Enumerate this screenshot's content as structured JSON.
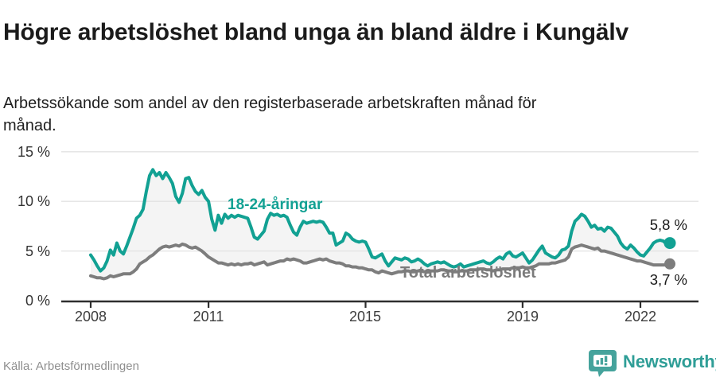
{
  "header": {
    "title": "Högre arbetslöshet bland unga än bland äldre i Kungälv",
    "subtitle": "Arbetssökande som andel av den registerbaserade arbetskraften månad för månad."
  },
  "footer": {
    "source": "Källa: Arbetsförmedlingen",
    "brand": "Newsworthy"
  },
  "colors": {
    "teal": "#12a193",
    "gray": "#7d7d7d",
    "band": "#f4f4f4",
    "grid": "#e2e2e2",
    "axis": "#2e2e2e",
    "logo_badge": "#45a39c",
    "logo_text": "#2f9e97"
  },
  "chart_data": {
    "type": "line",
    "title": "Högre arbetslöshet bland unga än bland äldre i Kungälv",
    "subtitle": "Arbetssökande som andel av den registerbaserade arbetskraften månad för månad.",
    "unit": "%",
    "x_monthly_start": "2008-01",
    "x_monthly_end": "2022-10",
    "ylim": [
      0,
      16
    ],
    "grid": true,
    "y_grid_values": [
      0,
      5,
      10,
      15
    ],
    "y_tick_labels": [
      "15 %",
      "10 %",
      "5 %",
      "0 %"
    ],
    "x_ticks": [
      {
        "label": "2008",
        "month_index": 0
      },
      {
        "label": "2011",
        "month_index": 36
      },
      {
        "label": "2015",
        "month_index": 84
      },
      {
        "label": "2019",
        "month_index": 132
      },
      {
        "label": "2022",
        "month_index": 168
      }
    ],
    "series": [
      {
        "name": "18-24-åringar",
        "end_label": "5,8 %",
        "end_value": 5.8,
        "values": [
          4.6,
          4.1,
          3.5,
          3.0,
          3.3,
          4.0,
          5.1,
          4.6,
          5.8,
          5.0,
          4.7,
          5.5,
          6.4,
          7.3,
          8.3,
          8.6,
          9.2,
          11.0,
          12.6,
          13.2,
          12.6,
          12.9,
          12.3,
          12.9,
          12.4,
          11.8,
          10.5,
          9.9,
          10.8,
          12.3,
          12.4,
          11.6,
          11.0,
          10.7,
          11.1,
          10.4,
          10.0,
          8.2,
          7.1,
          8.6,
          7.8,
          8.7,
          8.3,
          8.6,
          8.4,
          8.6,
          8.5,
          8.4,
          8.3,
          7.4,
          6.4,
          6.2,
          6.6,
          7.0,
          8.2,
          8.8,
          8.6,
          8.7,
          8.5,
          8.6,
          8.4,
          7.6,
          6.9,
          6.6,
          7.4,
          8.0,
          7.8,
          7.9,
          8.0,
          7.9,
          8.0,
          7.9,
          7.4,
          6.8,
          6.8,
          5.6,
          5.8,
          6.0,
          6.8,
          6.6,
          6.2,
          6.0,
          5.9,
          6.0,
          5.9,
          5.2,
          4.4,
          4.3,
          4.5,
          4.7,
          4.0,
          3.5,
          3.9,
          4.3,
          4.2,
          4.1,
          4.3,
          4.2,
          3.9,
          4.0,
          4.2,
          4.0,
          3.7,
          3.5,
          3.7,
          3.8,
          3.9,
          3.8,
          3.9,
          3.7,
          3.5,
          3.4,
          3.5,
          3.7,
          3.4,
          3.5,
          3.6,
          3.7,
          3.8,
          3.9,
          4.0,
          3.8,
          3.7,
          3.9,
          4.2,
          4.4,
          4.2,
          4.7,
          4.9,
          4.5,
          4.4,
          4.6,
          4.8,
          4.3,
          3.8,
          4.1,
          4.6,
          5.1,
          5.5,
          4.8,
          4.6,
          4.4,
          4.3,
          4.6,
          5.1,
          5.2,
          5.5,
          7.0,
          8.0,
          8.3,
          8.7,
          8.5,
          8.0,
          7.4,
          7.6,
          7.2,
          7.3,
          7.0,
          7.4,
          7.3,
          6.9,
          6.5,
          5.8,
          5.4,
          5.2,
          5.6,
          5.3,
          4.9,
          4.6,
          4.5,
          4.9,
          5.3,
          5.8,
          6.0,
          6.1,
          6.0,
          5.7,
          5.8
        ]
      },
      {
        "name": "Total arbetslöshet",
        "end_label": "3,7 %",
        "end_value": 3.7,
        "values": [
          2.5,
          2.4,
          2.3,
          2.3,
          2.2,
          2.3,
          2.5,
          2.4,
          2.5,
          2.6,
          2.7,
          2.7,
          2.7,
          2.9,
          3.2,
          3.7,
          3.9,
          4.1,
          4.4,
          4.6,
          4.9,
          5.2,
          5.4,
          5.5,
          5.4,
          5.5,
          5.6,
          5.5,
          5.7,
          5.6,
          5.4,
          5.3,
          5.4,
          5.2,
          5.0,
          4.7,
          4.4,
          4.2,
          4.0,
          3.8,
          3.8,
          3.7,
          3.6,
          3.7,
          3.6,
          3.7,
          3.6,
          3.7,
          3.7,
          3.8,
          3.6,
          3.7,
          3.8,
          3.9,
          3.6,
          3.7,
          3.8,
          3.9,
          4.0,
          4.0,
          4.2,
          4.1,
          4.2,
          4.1,
          4.0,
          3.8,
          3.8,
          3.9,
          4.0,
          4.1,
          4.2,
          4.1,
          4.2,
          4.0,
          3.9,
          3.8,
          3.8,
          3.7,
          3.5,
          3.5,
          3.4,
          3.4,
          3.3,
          3.3,
          3.2,
          3.1,
          3.1,
          2.9,
          2.8,
          3.0,
          2.9,
          2.8,
          2.7,
          2.8,
          2.9,
          2.9,
          3.0,
          3.0,
          2.9,
          2.9,
          3.0,
          3.0,
          2.9,
          2.9,
          3.0,
          3.0,
          3.0,
          3.1,
          3.1,
          3.0,
          3.0,
          2.9,
          2.9,
          3.0,
          3.0,
          3.0,
          3.1,
          3.1,
          3.1,
          3.2,
          3.2,
          3.1,
          3.1,
          3.0,
          3.1,
          3.1,
          3.2,
          3.2,
          3.2,
          3.3,
          3.3,
          3.3,
          3.4,
          3.3,
          3.3,
          3.4,
          3.5,
          3.7,
          3.7,
          3.7,
          3.7,
          3.8,
          3.8,
          3.9,
          4.0,
          4.1,
          4.4,
          5.2,
          5.4,
          5.5,
          5.6,
          5.5,
          5.4,
          5.3,
          5.2,
          5.3,
          5.0,
          5.0,
          4.9,
          4.8,
          4.7,
          4.6,
          4.5,
          4.4,
          4.3,
          4.2,
          4.1,
          4.0,
          4.0,
          3.9,
          3.8,
          3.7,
          3.6,
          3.6,
          3.6,
          3.6,
          3.6,
          3.7
        ]
      }
    ]
  }
}
